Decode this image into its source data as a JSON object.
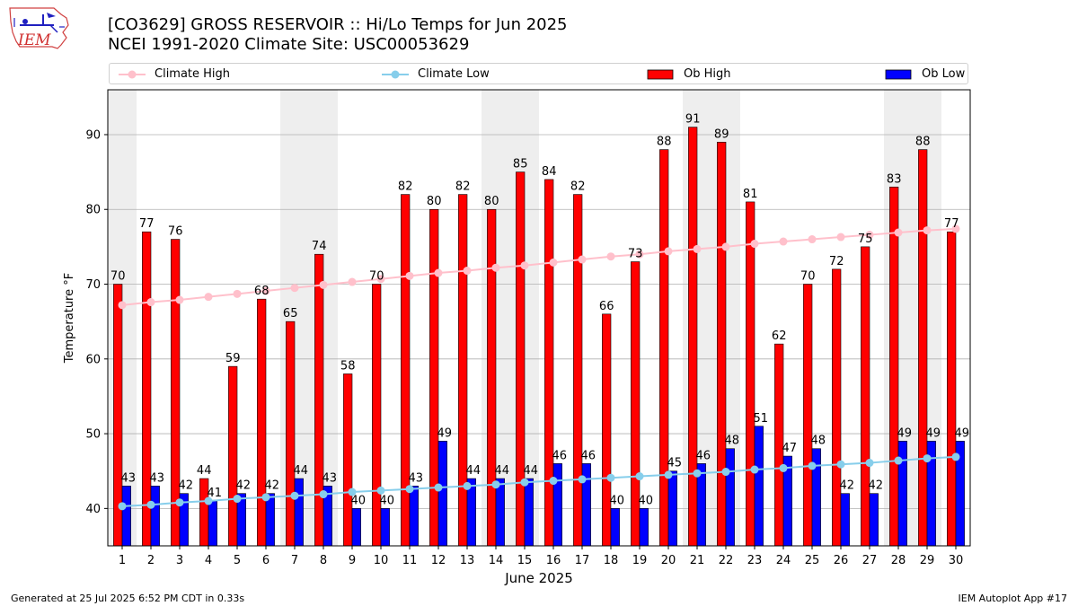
{
  "header": {
    "title_line1": "[CO3629] GROSS RESERVOIR :: Hi/Lo Temps for Jun 2025",
    "title_line2": "NCEI 1991-2020 Climate Site: USC00053629",
    "logo_text": "IEM"
  },
  "legend": {
    "climate_high": "Climate High",
    "climate_low": "Climate Low",
    "ob_high": "Ob High",
    "ob_low": "Ob Low"
  },
  "footer": {
    "left": "Generated at 25 Jul 2025 6:52 PM CDT in 0.33s",
    "right": "IEM Autoplot App #17"
  },
  "colors": {
    "ob_high": "#ff0000",
    "ob_low": "#0000ff",
    "climate_high": "#ffc0cb",
    "climate_low": "#87ceeb",
    "weekend_shade": "#eeeeee",
    "grid": "#b0b0b0"
  },
  "chart_data": {
    "type": "bar",
    "xlabel": "June 2025",
    "ylabel": "Temperature °F",
    "ylim": [
      35,
      96
    ],
    "yticks": [
      40,
      50,
      60,
      70,
      80,
      90
    ],
    "grid": "horizontal",
    "legend_position": "top",
    "categories": [
      "1",
      "2",
      "3",
      "4",
      "5",
      "6",
      "7",
      "8",
      "9",
      "10",
      "11",
      "12",
      "13",
      "14",
      "15",
      "16",
      "17",
      "18",
      "19",
      "20",
      "21",
      "22",
      "23",
      "24",
      "25",
      "26",
      "27",
      "28",
      "29",
      "30"
    ],
    "shaded_days": [
      1,
      7,
      8,
      14,
      15,
      21,
      22,
      28,
      29
    ],
    "series": [
      {
        "name": "Ob High",
        "kind": "bar",
        "values": [
          70,
          77,
          76,
          44,
          59,
          68,
          65,
          74,
          58,
          70,
          82,
          80,
          82,
          80,
          85,
          84,
          82,
          66,
          73,
          88,
          91,
          89,
          81,
          62,
          70,
          72,
          75,
          83,
          88,
          77
        ]
      },
      {
        "name": "Ob Low",
        "kind": "bar",
        "values": [
          43,
          43,
          42,
          41,
          42,
          42,
          44,
          43,
          40,
          40,
          43,
          49,
          44,
          44,
          44,
          46,
          46,
          40,
          40,
          45,
          46,
          48,
          51,
          47,
          48,
          42,
          42,
          49,
          49,
          49
        ]
      },
      {
        "name": "Climate High",
        "kind": "line",
        "values": [
          67.2,
          67.6,
          67.9,
          68.3,
          68.7,
          69.1,
          69.5,
          69.9,
          70.3,
          70.7,
          71.1,
          71.5,
          71.8,
          72.2,
          72.5,
          72.9,
          73.3,
          73.7,
          74.0,
          74.4,
          74.7,
          75.0,
          75.4,
          75.7,
          76.0,
          76.3,
          76.6,
          76.9,
          77.2,
          77.4
        ]
      },
      {
        "name": "Climate Low",
        "kind": "line",
        "values": [
          40.3,
          40.5,
          40.8,
          41.0,
          41.3,
          41.5,
          41.7,
          41.9,
          42.2,
          42.4,
          42.6,
          42.8,
          43.0,
          43.2,
          43.5,
          43.7,
          43.9,
          44.1,
          44.3,
          44.5,
          44.7,
          44.9,
          45.2,
          45.4,
          45.7,
          45.9,
          46.1,
          46.4,
          46.7,
          46.9
        ]
      }
    ]
  }
}
